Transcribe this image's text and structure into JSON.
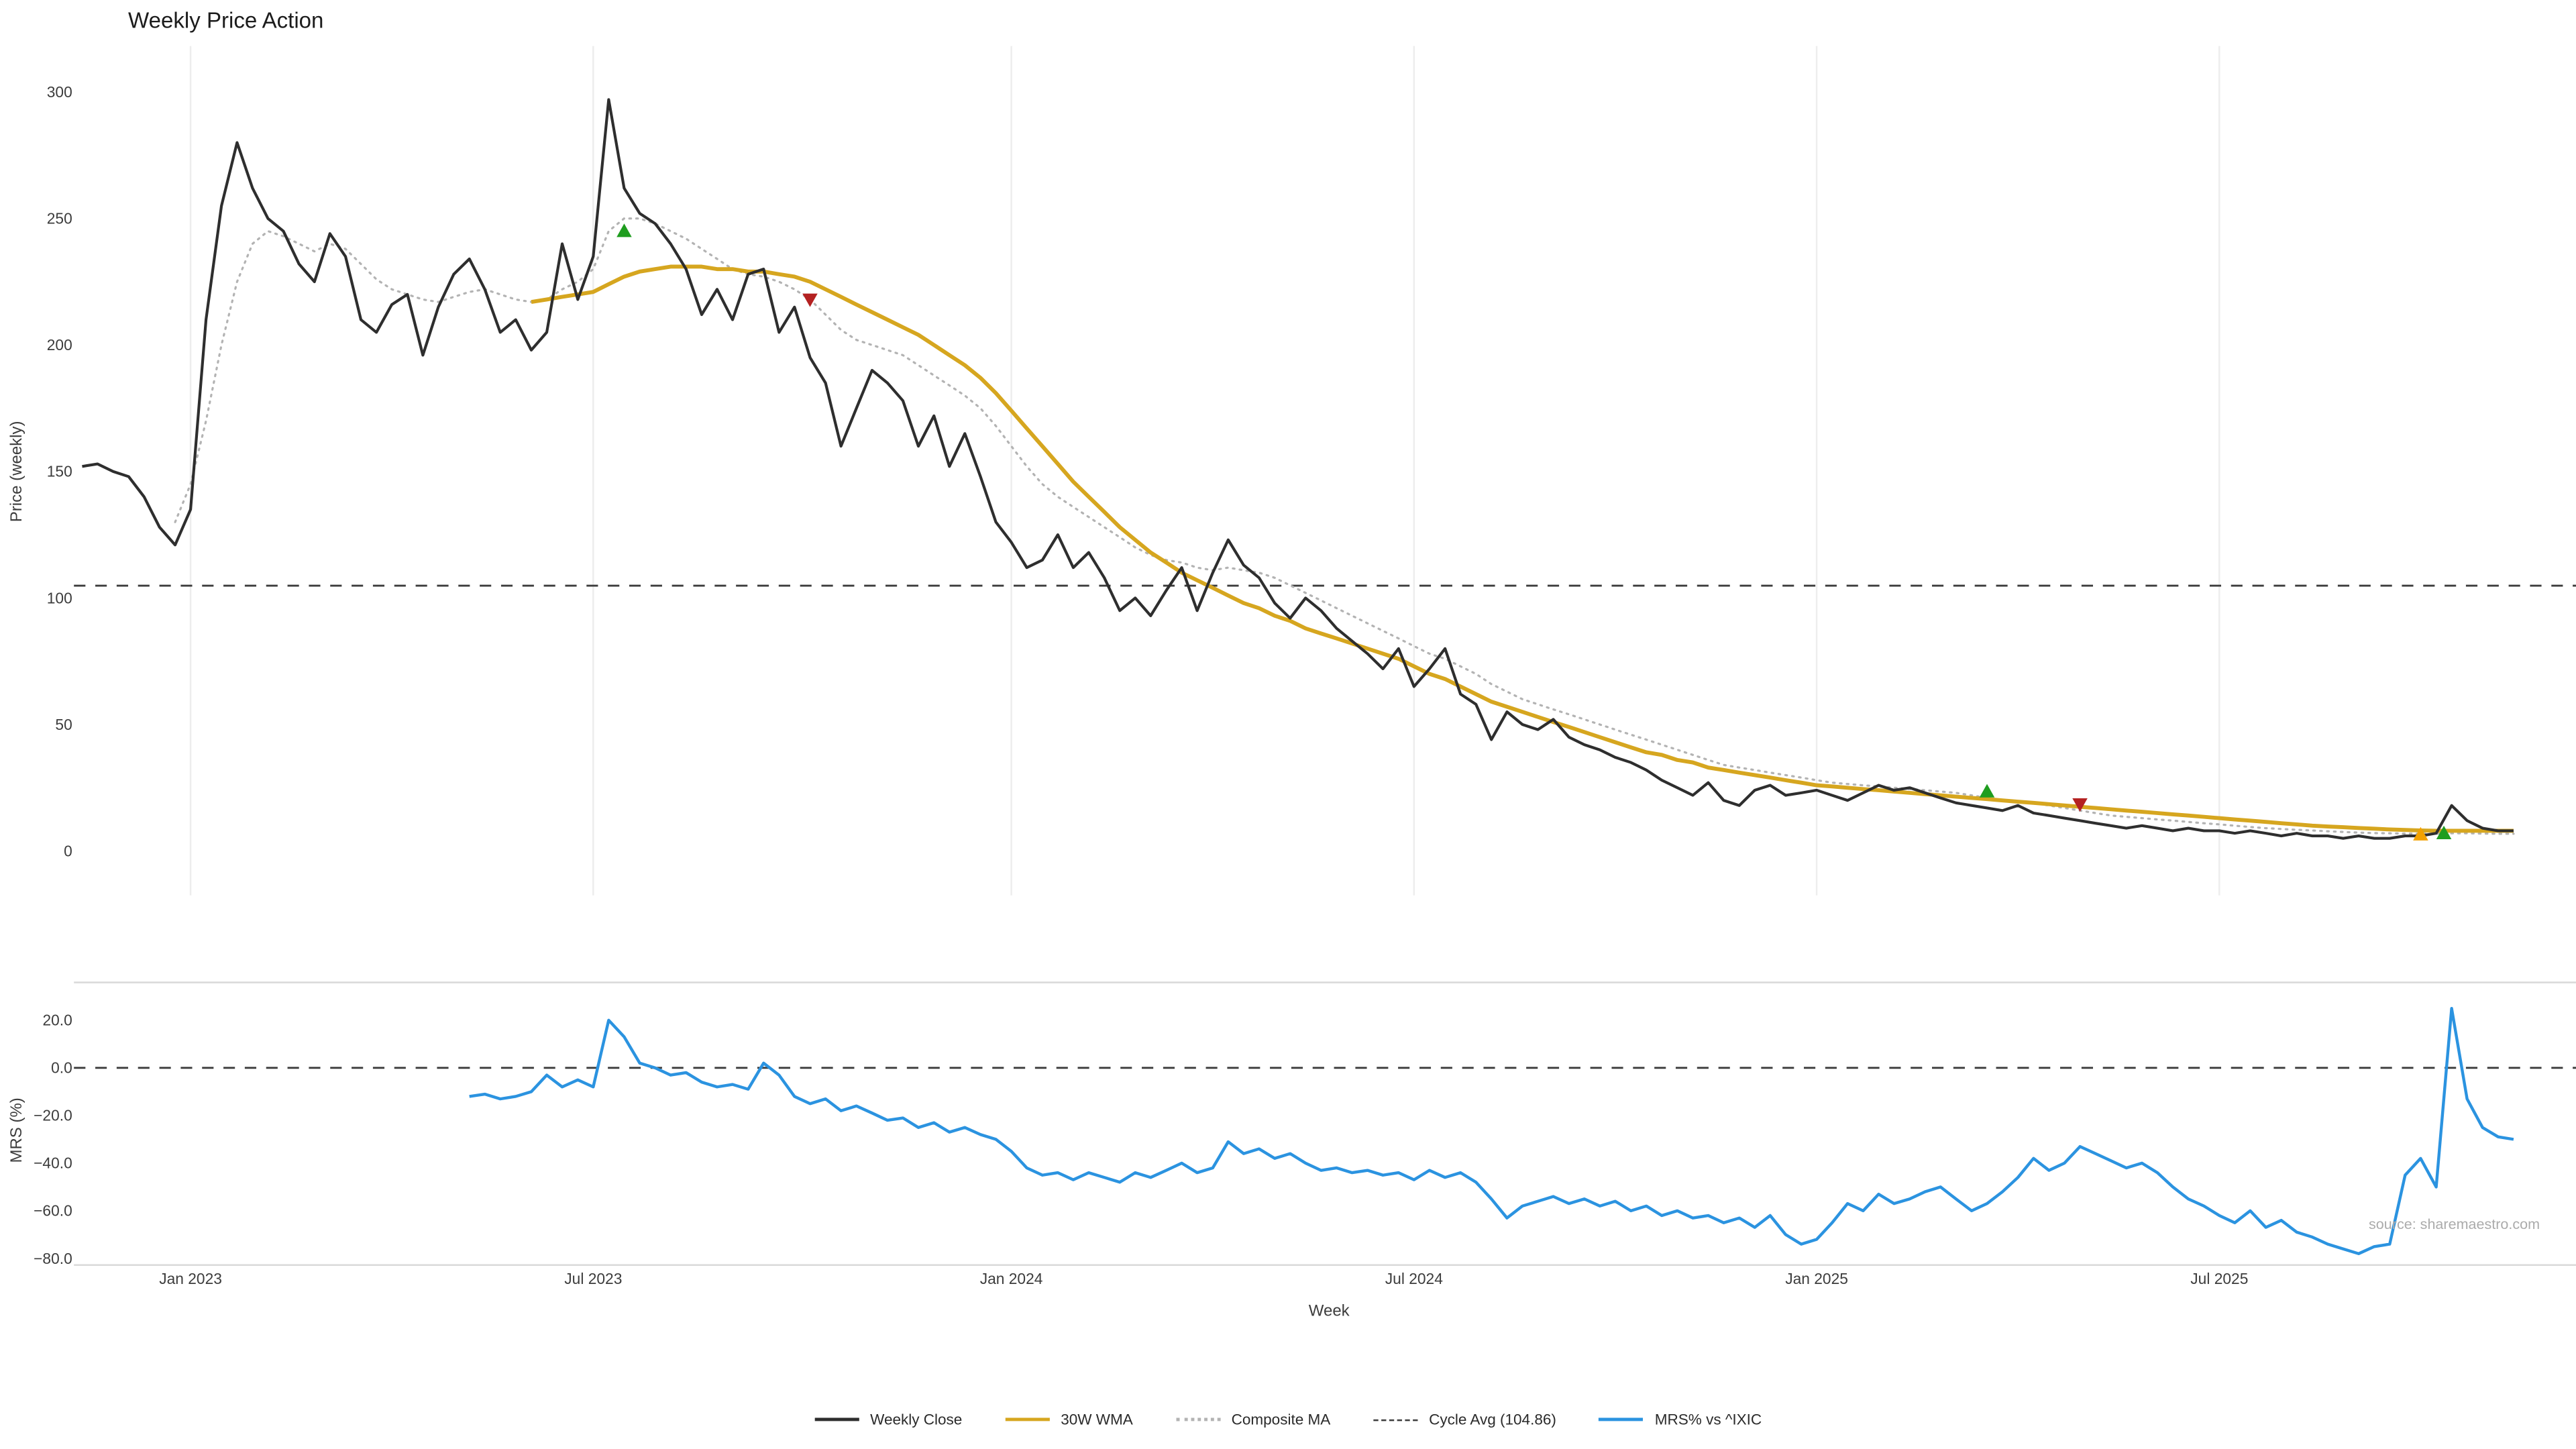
{
  "title": "Weekly Price Action",
  "axes": {
    "price_ylabel": "Price (weekly)",
    "mrs_ylabel": "MRS (%)",
    "xlabel": "Week"
  },
  "watermark": "source: sharemaestro.com",
  "colors": {
    "weekly_close": "#2e2e2e",
    "wma": "#d6a61f",
    "composite": "#b3b3b3",
    "cycle_avg": "#3c3c3c",
    "mrs": "#2b93e0",
    "buy": "#1f9d1f",
    "sell": "#b42121",
    "special": "#f2a100",
    "gridline": "#ededed",
    "panel_border": "#d9d9d9",
    "tick_text": "#3c3c3c",
    "watermark_text": "#ababab"
  },
  "legend": {
    "position": "bottom-center",
    "items": [
      {
        "key": "weekly_close",
        "style": "solid",
        "label": "Weekly Close"
      },
      {
        "key": "wma",
        "style": "solid",
        "label": "30W WMA"
      },
      {
        "key": "composite",
        "style": "dotted",
        "label": "Composite MA"
      },
      {
        "key": "cycle_avg",
        "style": "dashed",
        "label": "Cycle Avg (104.86)"
      },
      {
        "key": "mrs",
        "style": "solid",
        "label": "MRS% vs ^IXIC"
      }
    ]
  },
  "chart_data": {
    "type": "line",
    "title": "Weekly Price Action",
    "xlabel": "Week",
    "weeks_total": 158,
    "x_ticks": [
      {
        "week": 7,
        "label": "Jan 2023"
      },
      {
        "week": 33,
        "label": "Jul 2023"
      },
      {
        "week": 60,
        "label": "Jan 2024"
      },
      {
        "week": 86,
        "label": "Jul 2024"
      },
      {
        "week": 112,
        "label": "Jan 2025"
      },
      {
        "week": 138,
        "label": "Jul 2025"
      }
    ],
    "price_panel": {
      "ylabel": "Price (weekly)",
      "ylim": [
        -18,
        317
      ],
      "y_ticks": [
        0,
        50,
        100,
        150,
        200,
        250,
        300
      ],
      "grid": "x",
      "cycle_avg": 104.86,
      "series": [
        {
          "name": "Weekly Close",
          "start_week": 0,
          "values": [
            152,
            153,
            150,
            148,
            140,
            128,
            121,
            135,
            210,
            255,
            280,
            262,
            250,
            245,
            232,
            225,
            244,
            235,
            210,
            205,
            216,
            220,
            196,
            215,
            228,
            234,
            222,
            205,
            210,
            198,
            205,
            240,
            218,
            235,
            297,
            262,
            252,
            248,
            240,
            230,
            212,
            222,
            210,
            228,
            230,
            205,
            215,
            195,
            185,
            160,
            175,
            190,
            185,
            178,
            160,
            172,
            152,
            165,
            148,
            130,
            122,
            112,
            115,
            125,
            112,
            118,
            108,
            95,
            100,
            93,
            103,
            112,
            95,
            110,
            123,
            113,
            108,
            98,
            92,
            100,
            95,
            88,
            83,
            78,
            72,
            80,
            65,
            72,
            80,
            62,
            58,
            44,
            55,
            50,
            48,
            52,
            45,
            42,
            40,
            37,
            35,
            32,
            28,
            25,
            22,
            27,
            20,
            18,
            24,
            26,
            22,
            23,
            24,
            22,
            20,
            23,
            26,
            24,
            25,
            23,
            21,
            19,
            18,
            17,
            16,
            18,
            15,
            14,
            13,
            12,
            11,
            10,
            9,
            10,
            9,
            8,
            9,
            8,
            8,
            7,
            8,
            7,
            6,
            7,
            6,
            6,
            5,
            6,
            5,
            5,
            6,
            6,
            7,
            18,
            12,
            9,
            8,
            8
          ]
        },
        {
          "name": "30W WMA",
          "start_week": 29,
          "values": [
            217,
            218,
            219,
            220,
            221,
            224,
            227,
            229,
            230,
            231,
            231,
            231,
            230,
            230,
            229,
            229,
            228,
            227,
            225,
            222,
            219,
            216,
            213,
            210,
            207,
            204,
            200,
            196,
            192,
            187,
            181,
            174,
            167,
            160,
            153,
            146,
            140,
            134,
            128,
            123,
            118,
            114,
            110,
            107,
            104,
            101,
            98,
            96,
            93,
            91,
            88,
            86,
            84,
            82,
            80,
            78,
            76,
            73,
            70,
            68,
            65,
            62,
            59,
            57,
            55,
            53,
            51,
            49,
            47,
            45,
            43,
            41,
            39,
            38,
            36,
            35,
            33,
            32,
            31,
            30,
            29,
            28,
            27,
            26,
            25.5,
            25,
            24.5,
            24,
            23.5,
            23,
            22.5,
            22,
            21.5,
            21,
            20.5,
            20,
            19.5,
            19,
            18.5,
            18,
            17.5,
            17,
            16.5,
            16,
            15.5,
            15,
            14.5,
            14,
            13.5,
            13,
            12.5,
            12,
            11.5,
            11,
            10.5,
            10,
            9.7,
            9.4,
            9.1,
            8.8,
            8.5,
            8.3,
            8.1,
            8,
            8,
            8,
            8,
            8,
            8
          ]
        },
        {
          "name": "Composite MA",
          "start_week": 6,
          "values": [
            130,
            145,
            170,
            200,
            225,
            240,
            245,
            243,
            240,
            237,
            240,
            238,
            232,
            226,
            222,
            220,
            218,
            217,
            219,
            221,
            222,
            220,
            218,
            217,
            218,
            222,
            225,
            230,
            245,
            250,
            250,
            248,
            245,
            242,
            238,
            234,
            230,
            228,
            227,
            225,
            222,
            218,
            212,
            206,
            202,
            200,
            198,
            196,
            192,
            188,
            184,
            180,
            175,
            168,
            160,
            152,
            145,
            140,
            136,
            132,
            128,
            124,
            120,
            117,
            115,
            114,
            112,
            111,
            112,
            111,
            110,
            108,
            105,
            102,
            99,
            96,
            93,
            90,
            87,
            84,
            81,
            78,
            76,
            73,
            70,
            66,
            63,
            60,
            58,
            56,
            54,
            52,
            50,
            48,
            46,
            44,
            42,
            40,
            38,
            36,
            34,
            33,
            32,
            31,
            30,
            29,
            28,
            27,
            26.5,
            26,
            25.5,
            25,
            24.5,
            24,
            23.5,
            23,
            22,
            21,
            20,
            19.5,
            19,
            18,
            17,
            16,
            15,
            14,
            13.5,
            13,
            12.5,
            12,
            11.5,
            11,
            10.5,
            10,
            9.5,
            9,
            8.7,
            8.4,
            8.1,
            7.8,
            7.5,
            7.3,
            7.1,
            7,
            6.9,
            6.8,
            6.8,
            7,
            7,
            6.9,
            6.8,
            6.8
          ]
        }
      ],
      "markers": [
        {
          "week": 35,
          "value": 245,
          "kind": "buy"
        },
        {
          "week": 47,
          "value": 218,
          "kind": "sell"
        },
        {
          "week": 123,
          "value": 23.5,
          "kind": "buy"
        },
        {
          "week": 129,
          "value": 18.5,
          "kind": "sell"
        },
        {
          "week": 151,
          "value": 6.5,
          "kind": "special"
        },
        {
          "week": 152.5,
          "value": 7,
          "kind": "buy"
        }
      ]
    },
    "mrs_panel": {
      "ylabel": "MRS (%)",
      "ylim": [
        -83,
        36
      ],
      "y_ticks": [
        20,
        0,
        -20,
        -40,
        -60,
        -80
      ],
      "zero_line": 0,
      "series": [
        {
          "name": "MRS% vs ^IXIC",
          "start_week": 25,
          "values": [
            -12,
            -11,
            -13,
            -12,
            -10,
            -3,
            -8,
            -5,
            -8,
            20,
            13,
            2,
            0,
            -3,
            -2,
            -6,
            -8,
            -7,
            -9,
            2,
            -3,
            -12,
            -15,
            -13,
            -18,
            -16,
            -19,
            -22,
            -21,
            -25,
            -23,
            -27,
            -25,
            -28,
            -30,
            -35,
            -42,
            -45,
            -44,
            -47,
            -44,
            -46,
            -48,
            -44,
            -46,
            -43,
            -40,
            -44,
            -42,
            -31,
            -36,
            -34,
            -38,
            -36,
            -40,
            -43,
            -42,
            -44,
            -43,
            -45,
            -44,
            -47,
            -43,
            -46,
            -44,
            -48,
            -55,
            -63,
            -58,
            -56,
            -54,
            -57,
            -55,
            -58,
            -56,
            -60,
            -58,
            -62,
            -60,
            -63,
            -62,
            -65,
            -63,
            -67,
            -62,
            -70,
            -74,
            -72,
            -65,
            -57,
            -60,
            -53,
            -57,
            -55,
            -52,
            -50,
            -55,
            -60,
            -57,
            -52,
            -46,
            -38,
            -43,
            -40,
            -33,
            -36,
            -39,
            -42,
            -40,
            -44,
            -50,
            -55,
            -58,
            -62,
            -65,
            -60,
            -67,
            -64,
            -69,
            -71,
            -74,
            -76,
            -78,
            -75,
            -74,
            -45,
            -38,
            -50,
            25,
            -13,
            -25,
            -29,
            -30
          ]
        }
      ]
    }
  }
}
